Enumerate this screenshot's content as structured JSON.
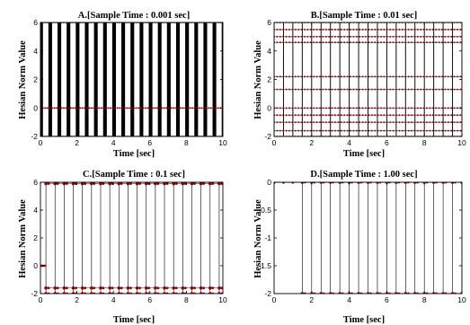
{
  "chart_data": [
    {
      "type": "line",
      "panel": "A",
      "title": "A.[Sample Time : 0.001 sec]",
      "xlabel": "Time [sec]",
      "ylabel": "Hesian Norm Value",
      "xlim": [
        0,
        10
      ],
      "ylim": [
        -2,
        6
      ],
      "xticks": [
        0,
        2,
        4,
        6,
        8,
        10
      ],
      "yticks": [
        -2,
        0,
        2,
        4,
        6
      ],
      "sample_time": 0.001,
      "series": [
        {
          "x_start": 0,
          "x_end": 10,
          "period": 0.5,
          "levels": [
            6,
            0,
            -2
          ],
          "line_color": "#000000",
          "marker_color": "#8b0000",
          "density": 2.0
        }
      ]
    },
    {
      "type": "line",
      "panel": "B",
      "title": "B.[Sample Time : 0.01 sec]",
      "xlabel": "Time [sec]",
      "ylabel": "Hesian Norm Value",
      "xlim": [
        0,
        10
      ],
      "ylim": [
        -2,
        6
      ],
      "xticks": [
        0,
        2,
        4,
        6,
        8,
        10
      ],
      "yticks": [
        -2,
        0,
        2,
        4,
        6
      ],
      "sample_time": 0.01,
      "series": [
        {
          "x_start": 0,
          "x_end": 10,
          "period": 0.5,
          "levels": [
            6,
            5.5,
            5,
            4.6,
            2.2,
            1.3,
            0,
            -0.5,
            -1,
            -1.6,
            -2
          ],
          "line_color": "#000000",
          "marker_color": "#8b0000",
          "density": 0.35
        }
      ]
    },
    {
      "type": "line",
      "panel": "C",
      "title": "C.[Sample Time : 0.1 sec]",
      "xlabel": "Time [sec]",
      "ylabel": "Hesian Norm Value",
      "xlim": [
        0,
        10
      ],
      "ylim": [
        -2,
        6
      ],
      "xticks": [
        0,
        2,
        4,
        6,
        8,
        10
      ],
      "yticks": [
        -2,
        0,
        2,
        4,
        6
      ],
      "sample_time": 0.1,
      "series": [
        {
          "x_start": 0.3,
          "x_end": 10,
          "period": 0.5,
          "levels": [
            6,
            5.9,
            -1.6,
            -2
          ],
          "initial_segment": {
            "x": [
              0,
              0.3
            ],
            "y": 0
          },
          "line_color": "#000000",
          "marker_color": "#8b0000"
        }
      ]
    },
    {
      "type": "line",
      "panel": "D",
      "title": "D.[Sample Time : 1.00 sec]",
      "xlabel": "Time [sec]",
      "ylabel": "Hesian Norm Value",
      "xlim": [
        0,
        10
      ],
      "ylim": [
        -2,
        0
      ],
      "xticks": [
        0,
        2,
        4,
        6,
        8,
        10
      ],
      "yticks": [
        -2,
        -1.5,
        -1,
        -0.5,
        0
      ],
      "sample_time": 1.0,
      "series": [
        {
          "initial_points": [
            [
              0,
              0
            ],
            [
              0.5,
              0
            ],
            [
              1.0,
              0
            ]
          ],
          "x_start": 1.5,
          "x_end": 10,
          "period": 0.5,
          "levels": [
            0,
            -2
          ],
          "line_color": "#000000",
          "marker_color": "#8b0000"
        }
      ]
    }
  ]
}
